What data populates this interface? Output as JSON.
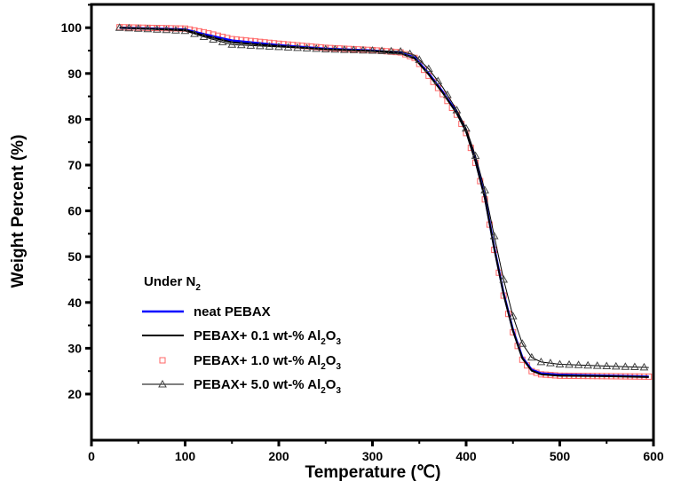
{
  "chart_data": {
    "type": "line",
    "xlabel": "Temperature (℃)",
    "ylabel": "Weight Percent (%)",
    "xlim": [
      0,
      600
    ],
    "ylim": [
      20,
      105
    ],
    "xticks": [
      0,
      100,
      200,
      300,
      400,
      500,
      600
    ],
    "yticks": [
      20,
      30,
      40,
      50,
      60,
      70,
      80,
      90,
      100
    ],
    "grid": false,
    "legend_placement": "bottom-left",
    "legend_title": "Under N2",
    "series": [
      {
        "name": "neat PEBAX",
        "color": "#0000ff",
        "marker": "none",
        "x": [
          30,
          100,
          120,
          150,
          200,
          250,
          300,
          330,
          345,
          360,
          375,
          390,
          400,
          410,
          420,
          430,
          440,
          450,
          460,
          470,
          480,
          500,
          550,
          595
        ],
        "y": [
          100,
          99.6,
          98.6,
          97.2,
          96.2,
          95.4,
          95,
          94.5,
          93.5,
          90,
          86,
          81.5,
          77.5,
          71,
          63,
          52,
          42,
          34,
          28,
          25.3,
          24.5,
          24.2,
          24,
          23.8
        ]
      },
      {
        "name": "PEBAX+ 0.1 wt-% Al2O3",
        "color": "#000000",
        "marker": "none",
        "x": [
          30,
          100,
          120,
          150,
          200,
          250,
          300,
          330,
          345,
          360,
          375,
          390,
          400,
          410,
          420,
          430,
          440,
          450,
          460,
          470,
          480,
          500,
          550,
          595
        ],
        "y": [
          100,
          99.5,
          98.3,
          96.8,
          96,
          95.3,
          94.9,
          94.4,
          93.3,
          89.8,
          85.8,
          81.3,
          77.3,
          70.8,
          62.8,
          51.8,
          41.8,
          33.8,
          27.8,
          25.1,
          24.3,
          24,
          23.9,
          23.7
        ]
      },
      {
        "name": "PEBAX+ 1.0 wt-% Al2O3",
        "color": "#ff6666",
        "marker": "square",
        "x": [
          30,
          100,
          120,
          150,
          200,
          250,
          300,
          330,
          345,
          360,
          375,
          390,
          400,
          410,
          420,
          430,
          440,
          450,
          460,
          470,
          480,
          500,
          550,
          595
        ],
        "y": [
          100.1,
          99.8,
          99,
          97.5,
          96.5,
          95.6,
          95.1,
          94.6,
          93.4,
          89.5,
          85.5,
          81,
          77,
          70.5,
          62.5,
          51.5,
          41.5,
          33.5,
          27.5,
          25,
          24.3,
          24,
          23.9,
          23.8
        ]
      },
      {
        "name": "PEBAX+ 5.0 wt-% Al2O3",
        "color": "#000000",
        "marker": "triangle",
        "x": [
          30,
          100,
          120,
          150,
          200,
          250,
          300,
          330,
          345,
          360,
          375,
          390,
          400,
          410,
          420,
          430,
          440,
          450,
          460,
          470,
          480,
          500,
          550,
          595
        ],
        "y": [
          100,
          99.3,
          98,
          96.3,
          95.8,
          95.3,
          95,
          94.8,
          94,
          91,
          87,
          82,
          78,
          72,
          64.5,
          54.5,
          45,
          37,
          31,
          28,
          27,
          26.5,
          26.1,
          25.8
        ]
      }
    ]
  }
}
